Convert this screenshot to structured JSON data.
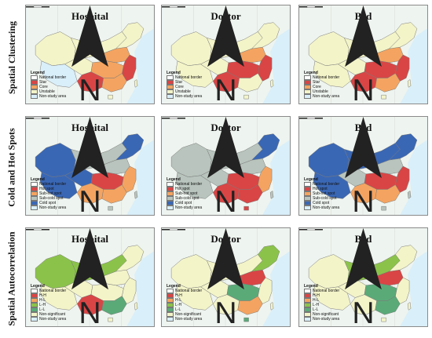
{
  "rows": [
    {
      "label": "Spatial Clustering",
      "panels": [
        {
          "title": "Hospital",
          "fills": {
            "xinjiang": "#f3f4c8",
            "tibet": "#d9eff9",
            "qinghai": "#f3f4c8",
            "inner_mongolia": "#f3f4c8",
            "northeast": "#f3f4c8",
            "north_china": "#f4a460",
            "east_coast": "#d94545",
            "central": "#f4a460",
            "southwest": "#d94545",
            "south": "#f4a460",
            "hainan": "#f3f4c8",
            "taiwan": "#f3f4c8"
          }
        },
        {
          "title": "Doctor",
          "fills": {
            "xinjiang": "#f3f4c8",
            "tibet": "#f3f4c8",
            "qinghai": "#f3f4c8",
            "inner_mongolia": "#f3f4c8",
            "northeast": "#f3f4c8",
            "north_china": "#f4a460",
            "east_coast": "#d94545",
            "central": "#d94545",
            "southwest": "#d94545",
            "south": "#f3f4c8",
            "hainan": "#f3f4c8",
            "taiwan": "#f3f4c8"
          }
        },
        {
          "title": "Bed",
          "fills": {
            "xinjiang": "#f3f4c8",
            "tibet": "#f3f4c8",
            "qinghai": "#f3f4c8",
            "inner_mongolia": "#f3f4c8",
            "northeast": "#f3f4c8",
            "north_china": "#f4a460",
            "east_coast": "#d94545",
            "central": "#d94545",
            "southwest": "#d94545",
            "south": "#f4a460",
            "hainan": "#f3f4c8",
            "taiwan": "#f3f4c8"
          }
        }
      ],
      "legend": {
        "title": "Legend",
        "items": [
          {
            "label": "National border",
            "color": "#ffffff"
          },
          {
            "label": "Star",
            "color": "#d94545"
          },
          {
            "label": "Core",
            "color": "#f4a460"
          },
          {
            "label": "Unstable",
            "color": "#f3f4c8"
          },
          {
            "label": "Non-study area",
            "color": "#d9eff9"
          }
        ]
      }
    },
    {
      "label": "Cold and Hot Spots",
      "panels": [
        {
          "title": "Hospital",
          "fills": {
            "xinjiang": "#3a67b4",
            "tibet": "#3a67b4",
            "qinghai": "#3a67b4",
            "inner_mongolia": "#b8c4bd",
            "northeast": "#3a67b4",
            "north_china": "#b8c4bd",
            "east_coast": "#f4a460",
            "central": "#d94545",
            "southwest": "#f4a460",
            "south": "#f4a460",
            "hainan": "#b8c4bd",
            "taiwan": "#b8c4bd"
          }
        },
        {
          "title": "Doctor",
          "fills": {
            "xinjiang": "#b8c4bd",
            "tibet": "#b8c4bd",
            "qinghai": "#b8c4bd",
            "inner_mongolia": "#b8c4bd",
            "northeast": "#3a67b4",
            "north_china": "#b8c4bd",
            "east_coast": "#f4a460",
            "central": "#d94545",
            "southwest": "#d94545",
            "south": "#d94545",
            "hainan": "#d94545",
            "taiwan": "#b8c4bd"
          }
        },
        {
          "title": "Bed",
          "fills": {
            "xinjiang": "#3a67b4",
            "tibet": "#3a67b4",
            "qinghai": "#b8c4bd",
            "inner_mongolia": "#3a67b4",
            "northeast": "#3a67b4",
            "north_china": "#b8c4bd",
            "east_coast": "#d94545",
            "central": "#d94545",
            "southwest": "#f4a460",
            "south": "#f4a460",
            "hainan": "#b8c4bd",
            "taiwan": "#b8c4bd"
          }
        }
      ],
      "legend": {
        "title": "Legend",
        "items": [
          {
            "label": "National border",
            "color": "#ffffff"
          },
          {
            "label": "Hot spot",
            "color": "#d94545"
          },
          {
            "label": "Sub-hot spot",
            "color": "#f4a460"
          },
          {
            "label": "Sub-cold spot",
            "color": "#b8c4bd"
          },
          {
            "label": "Cold spot",
            "color": "#3a67b4"
          },
          {
            "label": "Non-study area",
            "color": "#d9eff9"
          }
        ]
      }
    },
    {
      "label": "Spatial Autocorrelation",
      "panels": [
        {
          "title": "Hospital",
          "fills": {
            "xinjiang": "#8bc34a",
            "tibet": "#f3f4c8",
            "qinghai": "#f3f4c8",
            "inner_mongolia": "#8bc34a",
            "northeast": "#f3f4c8",
            "north_china": "#f3f4c8",
            "east_coast": "#f3f4c8",
            "central": "#f3f4c8",
            "southwest": "#d94545",
            "south": "#5aaa78",
            "hainan": "#f3f4c8",
            "taiwan": "#f3f4c8"
          }
        },
        {
          "title": "Doctor",
          "fills": {
            "xinjiang": "#f3f4c8",
            "tibet": "#f3f4c8",
            "qinghai": "#f3f4c8",
            "inner_mongolia": "#f3f4c8",
            "northeast": "#8bc34a",
            "north_china": "#d94545",
            "east_coast": "#f3f4c8",
            "central": "#5aaa78",
            "southwest": "#f3f4c8",
            "south": "#f4a460",
            "hainan": "#5aaa78",
            "taiwan": "#f3f4c8"
          }
        },
        {
          "title": "Bed",
          "fills": {
            "xinjiang": "#f3f4c8",
            "tibet": "#f3f4c8",
            "qinghai": "#f3f4c8",
            "inner_mongolia": "#8bc34a",
            "northeast": "#f3f4c8",
            "north_china": "#d94545",
            "east_coast": "#f3f4c8",
            "central": "#5aaa78",
            "southwest": "#f3f4c8",
            "south": "#5aaa78",
            "hainan": "#f3f4c8",
            "taiwan": "#f3f4c8"
          }
        }
      ],
      "legend": {
        "title": "Legend",
        "items": [
          {
            "label": "National border",
            "color": "#ffffff"
          },
          {
            "label": "H-H",
            "color": "#d94545"
          },
          {
            "label": "H-L",
            "color": "#f4a460"
          },
          {
            "label": "L-H",
            "color": "#8bc34a"
          },
          {
            "label": "L-L",
            "color": "#5aaa78"
          },
          {
            "label": "Non-significant",
            "color": "#f3f4c8"
          },
          {
            "label": "Non-study area",
            "color": "#d9eff9"
          }
        ]
      }
    }
  ]
}
